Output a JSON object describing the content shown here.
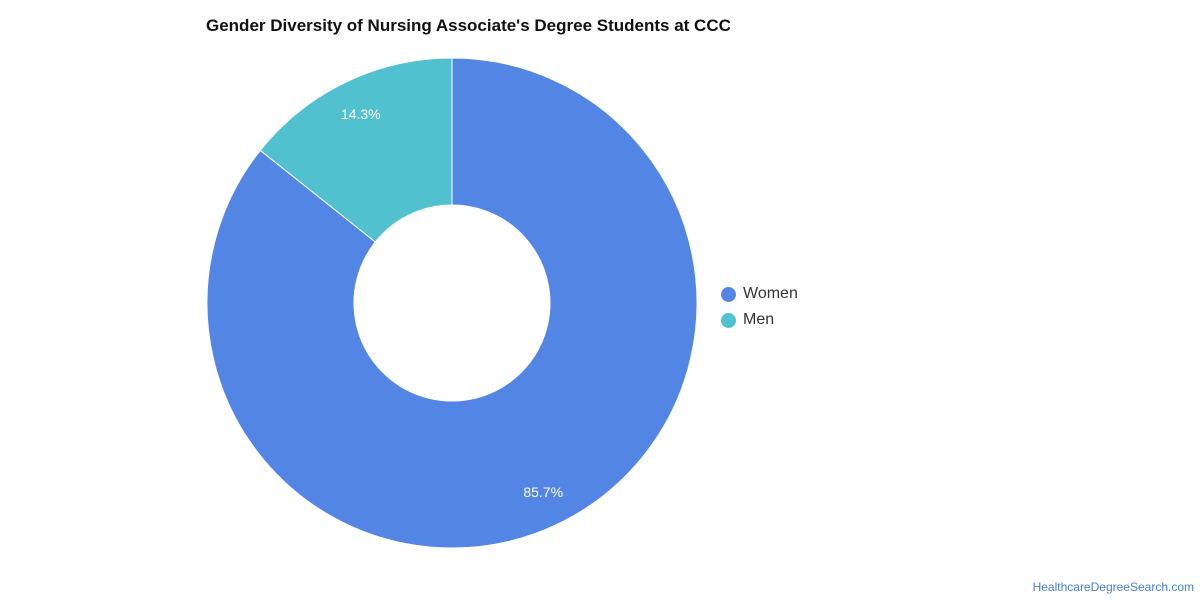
{
  "chart_data": {
    "type": "pie",
    "donut": true,
    "title": "Gender Diversity of Nursing Associate's Degree Students at CCC",
    "categories": [
      "Women",
      "Men"
    ],
    "values": [
      85.7,
      14.3
    ],
    "value_labels": [
      "85.7%",
      "14.3%"
    ],
    "colors": [
      "#5386e4",
      "#51c1cf"
    ],
    "legend": "right",
    "start_angle": "12 o'clock",
    "direction": "clockwise"
  },
  "credit": "HealthcareDegreeSearch.com"
}
